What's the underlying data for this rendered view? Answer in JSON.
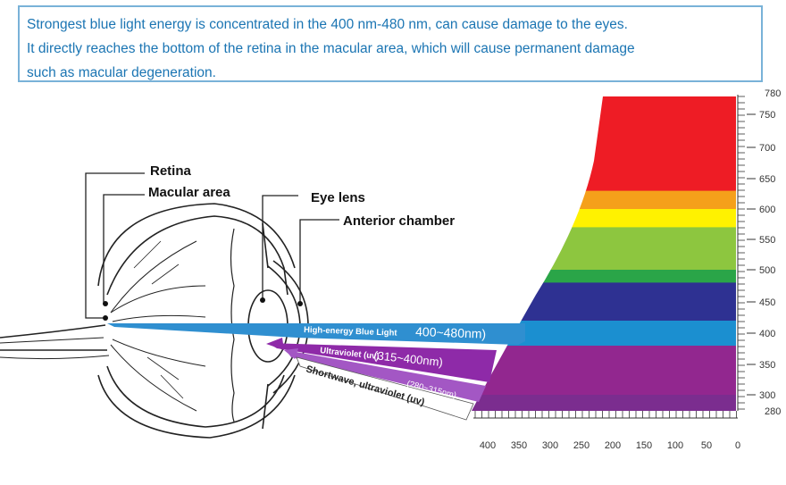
{
  "caption": {
    "line1": "Strongest blue light energy is concentrated in the 400 nm-480 nm, can cause damage to the eyes.",
    "line2": "It directly reaches the bottom of the retina in the macular area, which will cause permanent damage",
    "line3": "such as macular degeneration."
  },
  "eye_labels": {
    "retina": "Retina",
    "macular": "Macular area",
    "lens": "Eye lens",
    "anterior": "Anterior chamber"
  },
  "rays": [
    {
      "label_small": "High-energy Blue Light",
      "label_big": "400~480nm)",
      "color": "#2f8fd0"
    },
    {
      "label_small": "Ultraviolet (uv)",
      "label_big": "(315~400nm)",
      "color": "#8e2aa8"
    },
    {
      "label_small": "(280~315nm)",
      "label_big": "",
      "color": "#a357c4"
    },
    {
      "label_small": "Shortwave, ultraviolet (uv)",
      "label_big": "",
      "color": "#ffffff"
    }
  ],
  "spectrum_bands": [
    {
      "from": 630,
      "to": 780,
      "color": "#ee1c25"
    },
    {
      "from": 600,
      "to": 630,
      "color": "#f5a01a"
    },
    {
      "from": 570,
      "to": 600,
      "color": "#fff200"
    },
    {
      "from": 500,
      "to": 570,
      "color": "#8dc63f"
    },
    {
      "from": 480,
      "to": 500,
      "color": "#2aa548"
    },
    {
      "from": 420,
      "to": 480,
      "color": "#2e3192"
    },
    {
      "from": 380,
      "to": 420,
      "color": "#1b8fd0"
    },
    {
      "from": 300,
      "to": 380,
      "color": "#92278f"
    },
    {
      "from": 280,
      "to": 300,
      "color": "#7b2d8f"
    }
  ],
  "right_axis": {
    "ticks": [
      "780",
      "750",
      "700",
      "650",
      "600",
      "550",
      "500",
      "450",
      "400",
      "350",
      "300",
      "280"
    ]
  },
  "bottom_axis": {
    "ticks": [
      "400",
      "350",
      "300",
      "250",
      "200",
      "150",
      "100",
      "50",
      "0"
    ]
  }
}
